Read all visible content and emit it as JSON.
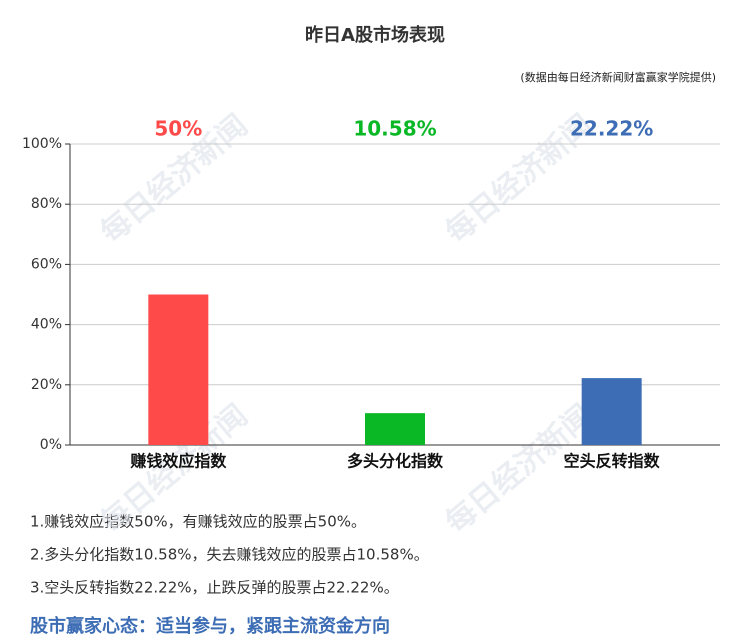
{
  "chart_data": {
    "type": "bar",
    "title": "昨日A股市场表现",
    "subtitle": "(数据由每日经济新闻财富赢家学院提供)",
    "watermark": "每日经济新闻",
    "categories": [
      "赚钱效应指数",
      "多头分化指数",
      "空头反转指数"
    ],
    "values": [
      50,
      10.58,
      22.22
    ],
    "value_labels": [
      "50%",
      "10.58%",
      "22.22%"
    ],
    "colors": [
      "#ff4a4a",
      "#0ab826",
      "#3d6db5"
    ],
    "ylim": [
      0,
      100
    ],
    "yticks": [
      {
        "value": 0,
        "label": "0%"
      },
      {
        "value": 20,
        "label": "20%"
      },
      {
        "value": 40,
        "label": "40%"
      },
      {
        "value": 60,
        "label": "60%"
      },
      {
        "value": 80,
        "label": "80%"
      },
      {
        "value": 100,
        "label": "100%"
      }
    ],
    "grid": true
  },
  "notes": [
    "1.赚钱效应指数50%，有赚钱效应的股票占50%。",
    "2.多头分化指数10.58%，失去赚钱效应的股票占10.58%。",
    "3.空头反转指数22.22%，止跌反弹的股票占22.22%。"
  ],
  "slogan": "股市赢家心态：适当参与，紧跟主流资金方向"
}
